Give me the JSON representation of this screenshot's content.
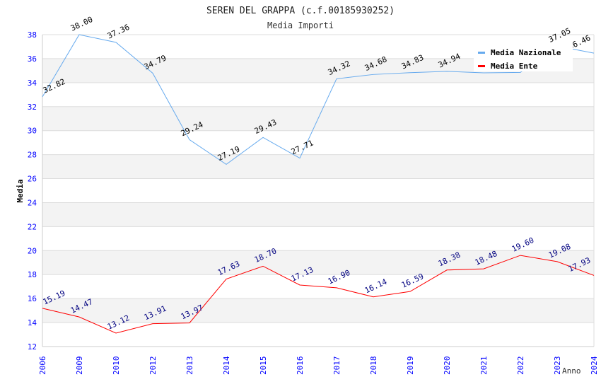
{
  "chart_data": {
    "type": "line",
    "title": "SEREN DEL GRAPPA (c.f.00185930252)",
    "subtitle": "Media Importi",
    "xlabel": "Anno",
    "ylabel": "Media",
    "ylim": [
      12,
      38
    ],
    "yticks": [
      12,
      14,
      16,
      18,
      20,
      22,
      24,
      26,
      28,
      30,
      32,
      34,
      36,
      38
    ],
    "categories": [
      "2006",
      "2009",
      "2010",
      "2012",
      "2013",
      "2014",
      "2015",
      "2016",
      "2017",
      "2018",
      "2019",
      "2020",
      "2021",
      "2022",
      "2023",
      "2024"
    ],
    "grid": true,
    "legend_position": "top-right",
    "series": [
      {
        "name": "Media Nazionale",
        "color": "#66aaee",
        "label_color": "#000000",
        "values": [
          32.82,
          38.0,
          37.36,
          34.79,
          29.24,
          27.19,
          29.43,
          27.71,
          34.32,
          34.68,
          34.83,
          34.94,
          34.82,
          34.85,
          37.05,
          36.46
        ],
        "labels": [
          "32.82",
          "38.00",
          "37.36",
          "34.79",
          "29.24",
          "27.19",
          "29.43",
          "27.71",
          "34.32",
          "34.68",
          "34.83",
          "34.94",
          "",
          "",
          "37.05",
          "36.46"
        ]
      },
      {
        "name": "Media Ente",
        "color": "#ff0000",
        "label_color": "#000080",
        "values": [
          15.19,
          14.47,
          13.12,
          13.91,
          13.97,
          17.63,
          18.7,
          17.13,
          16.9,
          16.14,
          16.59,
          18.38,
          18.48,
          19.6,
          19.08,
          17.93
        ],
        "labels": [
          "15.19",
          "14.47",
          "13.12",
          "13.91",
          "13.97",
          "17.63",
          "18.70",
          "17.13",
          "16.90",
          "16.14",
          "16.59",
          "18.38",
          "18.48",
          "19.60",
          "19.08",
          "17.93"
        ]
      }
    ]
  }
}
